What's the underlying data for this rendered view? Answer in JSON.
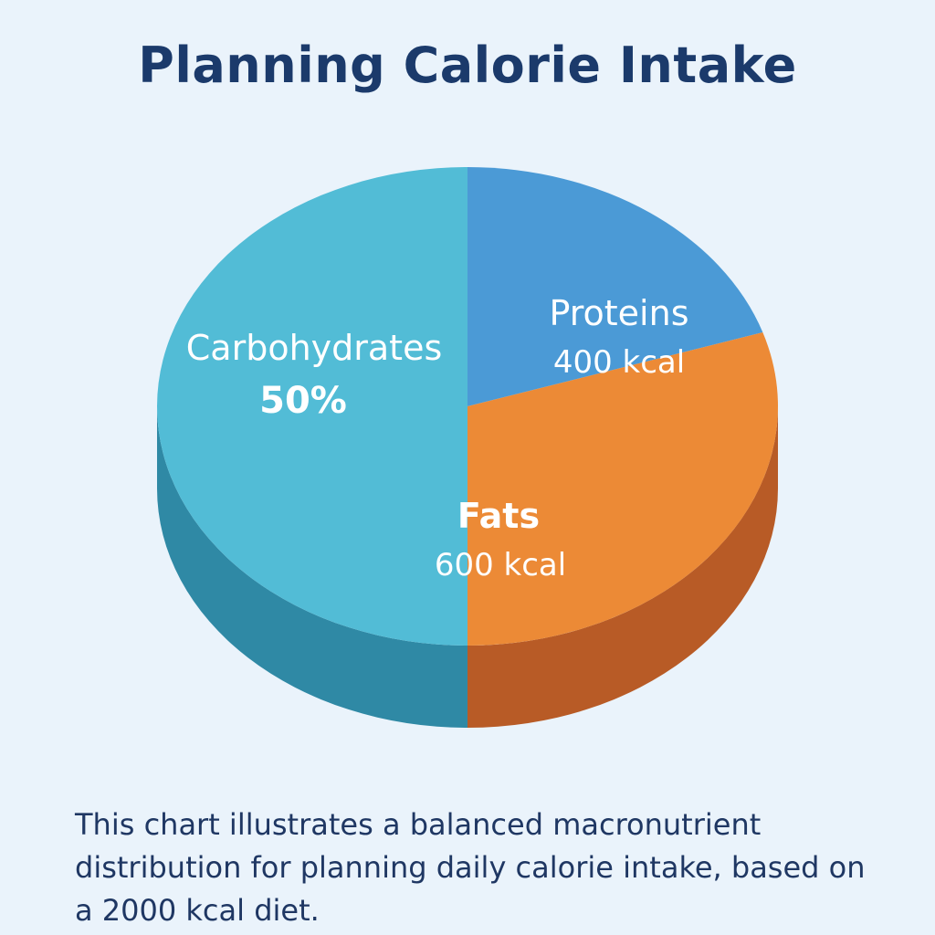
{
  "chart_data": {
    "type": "pie",
    "title": "Planning Calorie Intake",
    "total_kcal": 2000,
    "slices": [
      {
        "name": "Proteins",
        "label": "400 kcal",
        "value": 400,
        "color": "#4b9ad6",
        "side_color": "#2f6fa5"
      },
      {
        "name": "Fats",
        "label": "600 kcal",
        "value": 600,
        "color": "#ec8a36",
        "side_color": "#b85b26"
      },
      {
        "name": "Carbohydrates",
        "label": "50%",
        "value": 1000,
        "color": "#52bcd6",
        "side_color": "#2f89a5"
      }
    ]
  },
  "caption": "This chart illustrates a balanced macronutrient distribution for planning daily calorie intake, based on a 2000 kcal diet."
}
